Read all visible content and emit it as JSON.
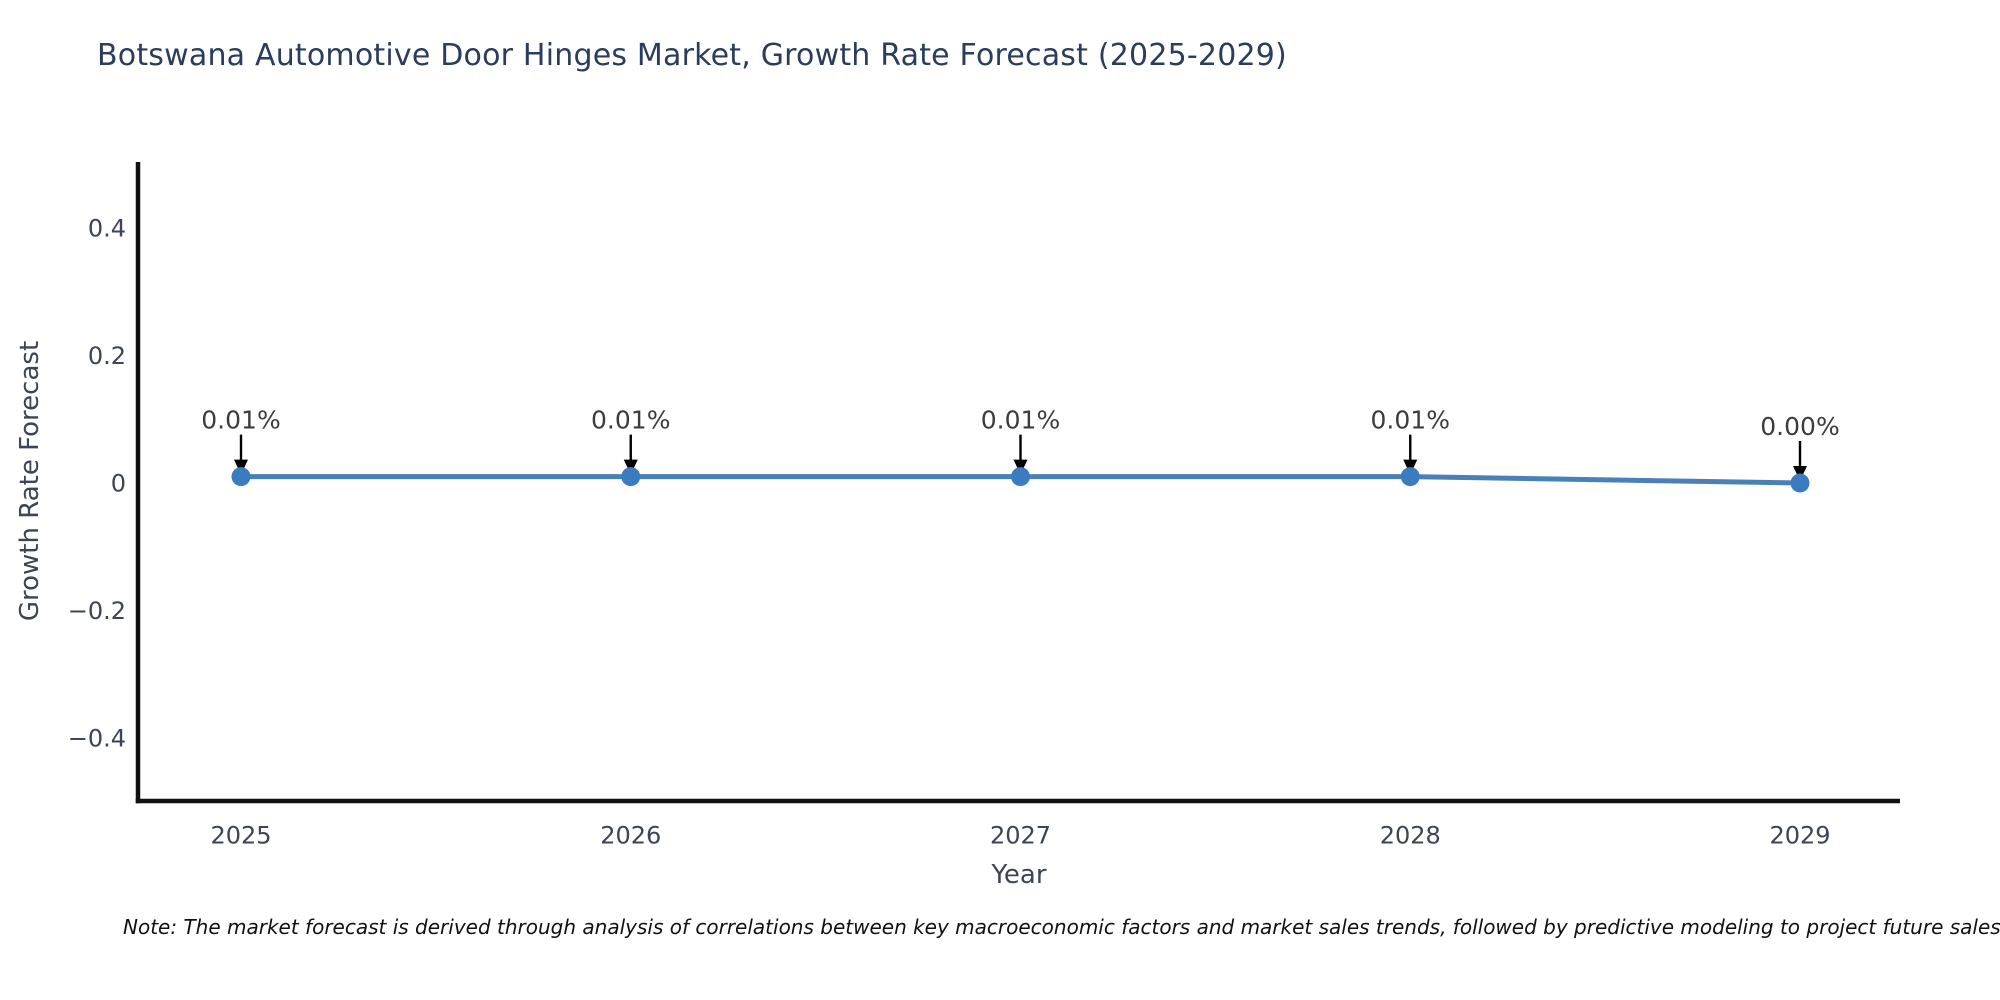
{
  "header": {
    "title": "Botswana Automotive Door Hinges Market, Growth Rate Forecast (2025-2029)"
  },
  "chart_data": {
    "type": "line",
    "title": "Botswana Automotive Door Hinges Market, Growth Rate Forecast (2025-2029)",
    "xlabel": "Year",
    "ylabel": "Growth Rate Forecast",
    "x": [
      2025,
      2026,
      2027,
      2028,
      2029
    ],
    "series": [
      {
        "name": "Growth Rate Forecast",
        "values": [
          0.01,
          0.01,
          0.01,
          0.01,
          0.0
        ]
      }
    ],
    "point_labels": [
      "0.01%",
      "0.01%",
      "0.01%",
      "0.01%",
      "0.00%"
    ],
    "xticks": [
      "2025",
      "2026",
      "2027",
      "2028",
      "2029"
    ],
    "yticks": [
      {
        "value": 0.4,
        "label": "0.4"
      },
      {
        "value": 0.2,
        "label": "0.2"
      },
      {
        "value": 0.0,
        "label": "0"
      },
      {
        "value": -0.2,
        "label": "−0.2"
      },
      {
        "value": -0.4,
        "label": "−0.4"
      }
    ],
    "ylim": [
      -0.5,
      0.5
    ],
    "grid": false,
    "legend": false,
    "colors": {
      "line": "#4a80b8",
      "marker": "#3b7cc0",
      "axis": "#111111",
      "tick_text": "#3d4455",
      "title_text": "#2b3d5c",
      "annotation_text": "#3c3c3c",
      "arrow": "#000000",
      "background": "#ffffff"
    }
  },
  "footnote": {
    "text": "Note: The market forecast is derived through analysis of correlations between key macroeconomic factors and market sales trends, followed by predictive modeling to project future sales performance."
  }
}
